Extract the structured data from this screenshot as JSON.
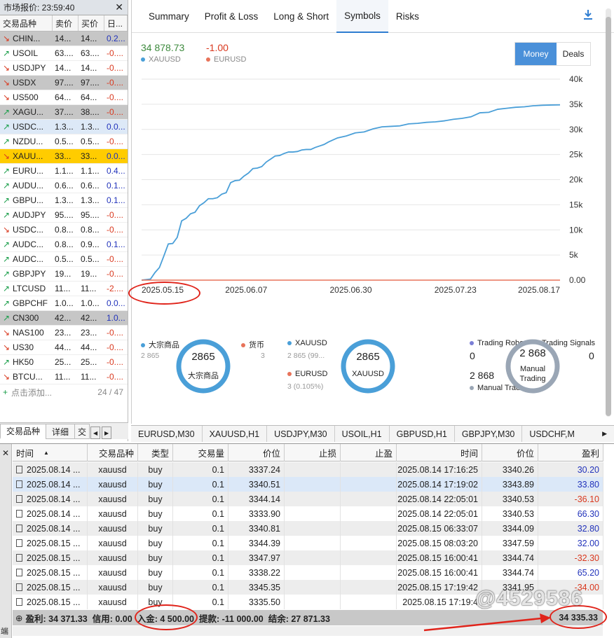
{
  "market_watch": {
    "title": "市场报价: 23:59:40",
    "columns": [
      "交易品种",
      "卖价",
      "买价",
      "日..."
    ],
    "rows": [
      {
        "symbol": "CHIN...",
        "bid": "14...",
        "ask": "14...",
        "change": "0.2...",
        "dir": "down",
        "style": "grey",
        "sign": "pos"
      },
      {
        "symbol": "USOIL",
        "bid": "63....",
        "ask": "63....",
        "change": "-0....",
        "dir": "up",
        "style": "",
        "sign": "neg"
      },
      {
        "symbol": "USDJPY",
        "bid": "14...",
        "ask": "14...",
        "change": "-0....",
        "dir": "down",
        "style": "",
        "sign": "neg"
      },
      {
        "symbol": "USDX",
        "bid": "97....",
        "ask": "97....",
        "change": "-0....",
        "dir": "down",
        "style": "grey",
        "sign": "neg"
      },
      {
        "symbol": "US500",
        "bid": "64...",
        "ask": "64...",
        "change": "-0....",
        "dir": "down",
        "style": "",
        "sign": "neg"
      },
      {
        "symbol": "XAGU...",
        "bid": "37....",
        "ask": "38....",
        "change": "-0....",
        "dir": "up",
        "style": "grey",
        "sign": "neg"
      },
      {
        "symbol": "USDC...",
        "bid": "1.3...",
        "ask": "1.3...",
        "change": "0.0...",
        "dir": "up",
        "style": "blue",
        "sign": "pos"
      },
      {
        "symbol": "NZDU...",
        "bid": "0.5...",
        "ask": "0.5...",
        "change": "-0....",
        "dir": "up",
        "style": "",
        "sign": "neg"
      },
      {
        "symbol": "XAUU...",
        "bid": "33...",
        "ask": "33...",
        "change": "0.0...",
        "dir": "down",
        "style": "yellow",
        "sign": "pos"
      },
      {
        "symbol": "EURU...",
        "bid": "1.1...",
        "ask": "1.1...",
        "change": "0.4...",
        "dir": "up",
        "style": "",
        "sign": "pos"
      },
      {
        "symbol": "AUDU...",
        "bid": "0.6...",
        "ask": "0.6...",
        "change": "0.1...",
        "dir": "up",
        "style": "",
        "sign": "pos"
      },
      {
        "symbol": "GBPU...",
        "bid": "1.3...",
        "ask": "1.3...",
        "change": "0.1...",
        "dir": "up",
        "style": "",
        "sign": "pos"
      },
      {
        "symbol": "AUDJPY",
        "bid": "95....",
        "ask": "95....",
        "change": "-0....",
        "dir": "up",
        "style": "",
        "sign": "neg"
      },
      {
        "symbol": "USDC...",
        "bid": "0.8...",
        "ask": "0.8...",
        "change": "-0....",
        "dir": "down",
        "style": "",
        "sign": "neg"
      },
      {
        "symbol": "AUDC...",
        "bid": "0.8...",
        "ask": "0.9...",
        "change": "0.1...",
        "dir": "up",
        "style": "",
        "sign": "pos"
      },
      {
        "symbol": "AUDC...",
        "bid": "0.5...",
        "ask": "0.5...",
        "change": "-0....",
        "dir": "up",
        "style": "",
        "sign": "neg"
      },
      {
        "symbol": "GBPJPY",
        "bid": "19...",
        "ask": "19...",
        "change": "-0....",
        "dir": "up",
        "style": "",
        "sign": "neg"
      },
      {
        "symbol": "LTCUSD",
        "bid": "11...",
        "ask": "11...",
        "change": "-2....",
        "dir": "up",
        "style": "",
        "sign": "neg"
      },
      {
        "symbol": "GBPCHF",
        "bid": "1.0...",
        "ask": "1.0...",
        "change": "0.0...",
        "dir": "up",
        "style": "",
        "sign": "pos"
      },
      {
        "symbol": "CN300",
        "bid": "42...",
        "ask": "42...",
        "change": "1.0...",
        "dir": "up",
        "style": "grey",
        "sign": "pos"
      },
      {
        "symbol": "NAS100",
        "bid": "23...",
        "ask": "23...",
        "change": "-0....",
        "dir": "down",
        "style": "",
        "sign": "neg"
      },
      {
        "symbol": "US30",
        "bid": "44...",
        "ask": "44...",
        "change": "-0....",
        "dir": "down",
        "style": "",
        "sign": "neg"
      },
      {
        "symbol": "HK50",
        "bid": "25...",
        "ask": "25...",
        "change": "-0....",
        "dir": "up",
        "style": "",
        "sign": "neg"
      },
      {
        "symbol": "BTCU...",
        "bid": "11...",
        "ask": "11...",
        "change": "-0....",
        "dir": "down",
        "style": "",
        "sign": "neg"
      }
    ],
    "add_label": "点击添加...",
    "count": "24 / 47",
    "tabs": [
      "交易品种",
      "详细",
      "交"
    ]
  },
  "report": {
    "tabs": [
      "Summary",
      "Profit & Loss",
      "Long & Short",
      "Symbols",
      "Risks"
    ],
    "active_tab": "Symbols",
    "legend": [
      {
        "value": "34 878.73",
        "name": "XAUUSD",
        "color": "#4a9fd8",
        "value_color": "#3d8a3d"
      },
      {
        "value": "-1.00",
        "name": "EURUSD",
        "color": "#e8735a",
        "value_color": "#d9381e"
      }
    ],
    "toggle": {
      "money": "Money",
      "deals": "Deals"
    },
    "donuts": {
      "left": {
        "legend1": "大宗商品",
        "sub1": "2 865",
        "legend2": "货币",
        "sub2": "3",
        "center_value": "2865",
        "center_label": "大宗商品"
      },
      "middle": {
        "legend1": "XAUUSD",
        "sub1": "2 865 (99...",
        "legend2": "EURUSD",
        "sub2": "3 (0.105%)",
        "center_value": "2865",
        "center_label": "XAUUSD"
      },
      "right": {
        "legend1": "Trading Robo",
        "legend2": "Trading Signals",
        "v1": "0",
        "v2": "0",
        "v3": "2 868",
        "legend3": "Manual Trad",
        "center_value": "2 868",
        "center_label1": "Manual",
        "center_label2": "Trading"
      }
    }
  },
  "chart_data": {
    "type": "line",
    "x_tick_labels": [
      "2025.05.15",
      "2025.06.07",
      "2025.06.30",
      "2025.07.23",
      "2025.08.17"
    ],
    "y_tick_labels": [
      "40k",
      "35k",
      "30k",
      "25k",
      "20k",
      "15k",
      "10k",
      "5k",
      "0.00"
    ],
    "ylim": [
      0,
      40000
    ],
    "xlim_days": [
      0,
      94
    ],
    "grid": true,
    "series": [
      {
        "name": "XAUUSD",
        "color": "#4a9fd8",
        "x": [
          0,
          2,
          3,
          4,
          5,
          6,
          7,
          8,
          9,
          10,
          11,
          12,
          13,
          14,
          15,
          16,
          17,
          18,
          19,
          20,
          21,
          22,
          23,
          24,
          25,
          26,
          27,
          28,
          29,
          30,
          31,
          32,
          33,
          34,
          35,
          36,
          37,
          38,
          39,
          40,
          41,
          42,
          44,
          46,
          48,
          50,
          52,
          54,
          56,
          58,
          60,
          62,
          64,
          66,
          68,
          70,
          72,
          74,
          76,
          78,
          79,
          80,
          82,
          84,
          86,
          88,
          90,
          92,
          94
        ],
        "y": [
          0,
          200,
          1500,
          2500,
          4800,
          7200,
          7300,
          8500,
          11800,
          12300,
          13200,
          13500,
          14800,
          15400,
          16200,
          16200,
          16400,
          17100,
          17400,
          19400,
          19800,
          19900,
          20700,
          21300,
          22200,
          22300,
          22600,
          23500,
          24100,
          24700,
          24800,
          25200,
          25500,
          25500,
          25600,
          25900,
          26000,
          26000,
          26400,
          26700,
          27000,
          27500,
          28300,
          28700,
          29300,
          29500,
          30100,
          30500,
          30600,
          30700,
          31100,
          31200,
          31400,
          31500,
          31700,
          32000,
          32200,
          32500,
          33300,
          33400,
          33700,
          34000,
          34200,
          34400,
          34500,
          34700,
          34800,
          34850,
          34878.73
        ]
      },
      {
        "name": "EURUSD",
        "color": "#e8735a",
        "x": [
          0,
          94
        ],
        "y": [
          0,
          -1
        ]
      }
    ]
  },
  "symbol_tabs": [
    "EURUSD,M30",
    "XAUUSD,H1",
    "USDJPY,M30",
    "USOIL,H1",
    "GBPUSD,H1",
    "GBPJPY,M30",
    "USDCHF,M"
  ],
  "deals": {
    "columns": [
      "时间",
      "交易品种",
      "类型",
      "交易量",
      "价位",
      "止损",
      "止盈",
      "时间",
      "价位",
      "盈利"
    ],
    "rows": [
      {
        "open": "2025.08.14 ...",
        "symbol": "xauusd",
        "type": "buy",
        "volume": "0.1",
        "price": "3337.24",
        "close_time": "2025.08.14 17:16:25",
        "close_price": "3340.26",
        "profit": "30.20",
        "sign": "pos"
      },
      {
        "open": "2025.08.14 ...",
        "symbol": "xauusd",
        "type": "buy",
        "volume": "0.1",
        "price": "3340.51",
        "close_time": "2025.08.14 17:19:02",
        "close_price": "3343.89",
        "profit": "33.80",
        "sign": "pos"
      },
      {
        "open": "2025.08.14 ...",
        "symbol": "xauusd",
        "type": "buy",
        "volume": "0.1",
        "price": "3344.14",
        "close_time": "2025.08.14 22:05:01",
        "close_price": "3340.53",
        "profit": "-36.10",
        "sign": "neg"
      },
      {
        "open": "2025.08.14 ...",
        "symbol": "xauusd",
        "type": "buy",
        "volume": "0.1",
        "price": "3333.90",
        "close_time": "2025.08.14 22:05:01",
        "close_price": "3340.53",
        "profit": "66.30",
        "sign": "pos"
      },
      {
        "open": "2025.08.14 ...",
        "symbol": "xauusd",
        "type": "buy",
        "volume": "0.1",
        "price": "3340.81",
        "close_time": "2025.08.15 06:33:07",
        "close_price": "3344.09",
        "profit": "32.80",
        "sign": "pos"
      },
      {
        "open": "2025.08.15 ...",
        "symbol": "xauusd",
        "type": "buy",
        "volume": "0.1",
        "price": "3344.39",
        "close_time": "2025.08.15 08:03:20",
        "close_price": "3347.59",
        "profit": "32.00",
        "sign": "pos"
      },
      {
        "open": "2025.08.15 ...",
        "symbol": "xauusd",
        "type": "buy",
        "volume": "0.1",
        "price": "3347.97",
        "close_time": "2025.08.15 16:00:41",
        "close_price": "3344.74",
        "profit": "-32.30",
        "sign": "neg"
      },
      {
        "open": "2025.08.15 ...",
        "symbol": "xauusd",
        "type": "buy",
        "volume": "0.1",
        "price": "3338.22",
        "close_time": "2025.08.15 16:00:41",
        "close_price": "3344.74",
        "profit": "65.20",
        "sign": "pos"
      },
      {
        "open": "2025.08.15 ...",
        "symbol": "xauusd",
        "type": "buy",
        "volume": "0.1",
        "price": "3345.35",
        "close_time": "2025.08.15 17:19:42",
        "close_price": "3341.95",
        "profit": "-34.00",
        "sign": "neg"
      },
      {
        "open": "2025.08.15 ...",
        "symbol": "xauusd",
        "type": "buy",
        "volume": "0.1",
        "price": "3335.50",
        "close_time": "2025.08.15 17:19:4",
        "close_price": "",
        "profit": "",
        "sign": "pos"
      }
    ],
    "summary": {
      "profit": "盈利: 34 371.33",
      "credit": "信用: 0.00",
      "deposit": "入金: 4 500.00",
      "withdrawal": "提款: -11 000.00",
      "balance": "结余: 27 871.33",
      "total": "34 335.33"
    }
  },
  "watermark": "@4529586"
}
